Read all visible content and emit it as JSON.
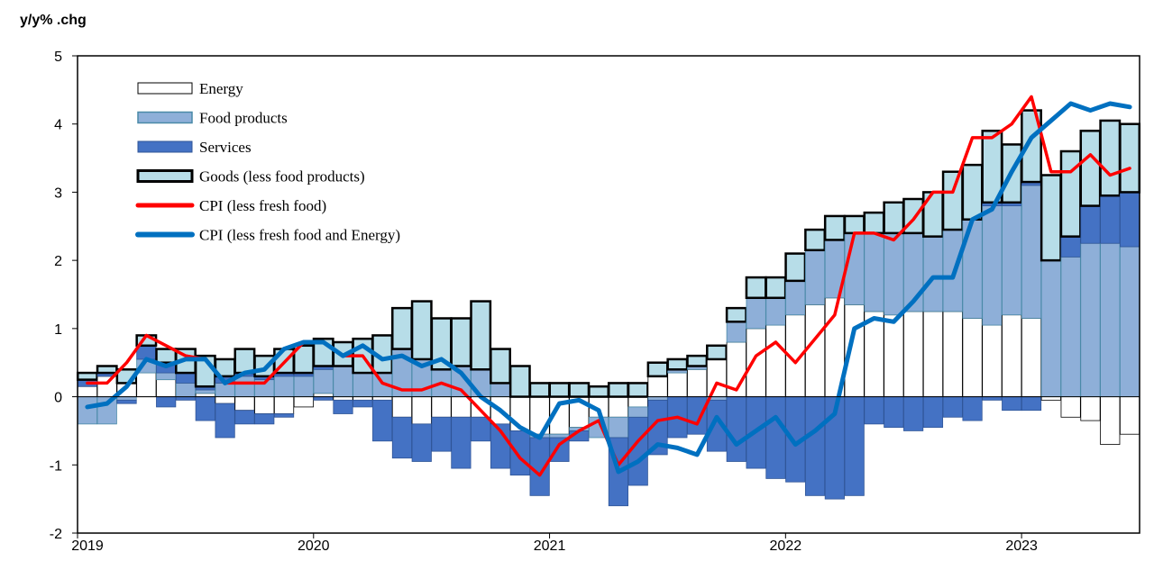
{
  "chart_data": {
    "type": "bar",
    "ylabel": "y/y% .chg",
    "ylim": [
      -2,
      5
    ],
    "yticks": [
      "5",
      "4",
      "3",
      "2",
      "1",
      "0",
      "-1",
      "-2"
    ],
    "x_labels": [
      "2019",
      "2020",
      "2021",
      "2022",
      "2023"
    ],
    "categories": [
      "2019-01",
      "2019-02",
      "2019-03",
      "2019-04",
      "2019-05",
      "2019-06",
      "2019-07",
      "2019-08",
      "2019-09",
      "2019-10",
      "2019-11",
      "2019-12",
      "2020-01",
      "2020-02",
      "2020-03",
      "2020-04",
      "2020-05",
      "2020-06",
      "2020-07",
      "2020-08",
      "2020-09",
      "2020-10",
      "2020-11",
      "2020-12",
      "2021-01",
      "2021-02",
      "2021-03",
      "2021-04",
      "2021-05",
      "2021-06",
      "2021-07",
      "2021-08",
      "2021-09",
      "2021-10",
      "2021-11",
      "2021-12",
      "2022-01",
      "2022-02",
      "2022-03",
      "2022-04",
      "2022-05",
      "2022-06",
      "2022-07",
      "2022-08",
      "2022-09",
      "2022-10",
      "2022-11",
      "2022-12",
      "2023-01",
      "2023-02",
      "2023-03",
      "2023-04",
      "2023-05",
      "2023-06"
    ],
    "legend_position": "top-left",
    "grid": false,
    "series": [
      {
        "name": "Energy",
        "kind": "bar",
        "color": "#ffffff",
        "values": [
          0.15,
          0.3,
          0.2,
          0.35,
          0.25,
          0.0,
          0.05,
          -0.1,
          -0.2,
          -0.25,
          -0.25,
          -0.15,
          0.05,
          -0.05,
          -0.05,
          -0.05,
          -0.3,
          -0.4,
          -0.3,
          -0.3,
          -0.3,
          -0.4,
          -0.5,
          -0.55,
          -0.55,
          -0.45,
          -0.3,
          -0.3,
          -0.15,
          0.3,
          0.35,
          0.4,
          0.55,
          0.8,
          1.0,
          1.05,
          1.2,
          1.35,
          1.45,
          1.35,
          1.25,
          1.2,
          1.25,
          1.25,
          1.25,
          1.15,
          1.05,
          1.2,
          1.15,
          -0.05,
          -0.3,
          -0.35,
          -0.7,
          -0.55
        ]
      },
      {
        "name": "Food products",
        "kind": "bar",
        "color": "#8eafd8",
        "values": [
          -0.4,
          -0.4,
          -0.05,
          0.2,
          0.1,
          0.2,
          0.05,
          0.2,
          0.3,
          0.25,
          0.3,
          0.3,
          0.35,
          0.45,
          0.35,
          0.35,
          0.7,
          0.55,
          0.4,
          0.45,
          0.4,
          0.2,
          0.0,
          -0.05,
          -0.05,
          -0.05,
          -0.3,
          -0.3,
          -0.15,
          -0.05,
          0.05,
          0.05,
          -0.05,
          0.3,
          0.45,
          0.4,
          0.5,
          0.8,
          0.85,
          1.05,
          1.15,
          1.2,
          1.15,
          1.1,
          1.2,
          1.45,
          1.75,
          1.6,
          1.95,
          2.0,
          2.05,
          2.25,
          2.25,
          2.2
        ]
      },
      {
        "name": "Services",
        "kind": "bar",
        "color": "#4472c4",
        "values": [
          0.1,
          0.05,
          0.0,
          0.2,
          0.15,
          0.15,
          0.05,
          0.1,
          0.05,
          0.05,
          0.05,
          0.05,
          0.05,
          0.0,
          0.0,
          0.0,
          0.0,
          0.0,
          0.0,
          0.0,
          0.0,
          0.0,
          0.0,
          0.0,
          0.0,
          0.0,
          0.0,
          0.0,
          0.0,
          0.0,
          0.0,
          0.0,
          0.0,
          0.0,
          0.0,
          0.0,
          0.0,
          0.0,
          0.0,
          0.0,
          0.0,
          0.0,
          0.0,
          0.0,
          0.0,
          0.0,
          0.05,
          0.05,
          0.05,
          0.0,
          0.3,
          0.55,
          0.7,
          0.8
        ]
      },
      {
        "name": "Services negative",
        "kind": "bar",
        "color": "#4472c4",
        "values": [
          0.0,
          0.0,
          -0.05,
          0.0,
          -0.15,
          -0.05,
          -0.35,
          -0.5,
          -0.2,
          -0.15,
          -0.05,
          0.0,
          -0.05,
          -0.2,
          -0.1,
          -0.6,
          -0.6,
          -0.55,
          -0.5,
          -0.75,
          -0.35,
          -0.65,
          -0.65,
          -0.85,
          -0.35,
          -0.15,
          0.0,
          -1.0,
          -1.0,
          -0.8,
          -0.6,
          -0.55,
          -0.75,
          -0.95,
          -1.05,
          -1.2,
          -1.25,
          -1.45,
          -1.5,
          -1.45,
          -0.4,
          -0.45,
          -0.5,
          -0.45,
          -0.3,
          -0.35,
          -0.05,
          -0.2,
          -0.2,
          0.0,
          0.0,
          0.0,
          0.0,
          0.0
        ]
      },
      {
        "name": "Goods (less food products)",
        "kind": "bar",
        "color": "#b7dde8",
        "values": [
          0.1,
          0.1,
          0.2,
          0.15,
          0.2,
          0.35,
          0.45,
          0.25,
          0.35,
          0.3,
          0.35,
          0.4,
          0.4,
          0.35,
          0.5,
          0.55,
          0.6,
          0.85,
          0.75,
          0.7,
          1.0,
          0.5,
          0.45,
          0.2,
          0.2,
          0.2,
          0.15,
          0.2,
          0.2,
          0.2,
          0.15,
          0.15,
          0.2,
          0.2,
          0.3,
          0.3,
          0.4,
          0.3,
          0.35,
          0.25,
          0.3,
          0.45,
          0.5,
          0.65,
          0.85,
          0.8,
          1.05,
          0.85,
          1.05,
          1.25,
          1.25,
          1.1,
          1.1,
          1.0
        ]
      },
      {
        "name": "CPI (less fresh food)",
        "kind": "line",
        "color": "#ff0000",
        "values": [
          0.2,
          0.2,
          0.5,
          0.9,
          0.75,
          0.6,
          0.55,
          0.2,
          0.2,
          0.2,
          0.5,
          0.8,
          0.8,
          0.6,
          0.6,
          0.2,
          0.1,
          0.1,
          0.2,
          0.1,
          -0.2,
          -0.5,
          -0.9,
          -1.15,
          -0.7,
          -0.5,
          -0.35,
          -1.0,
          -0.65,
          -0.35,
          -0.3,
          -0.4,
          0.2,
          0.1,
          0.6,
          0.8,
          0.5,
          0.85,
          1.2,
          2.4,
          2.4,
          2.3,
          2.6,
          3.0,
          3.0,
          3.8,
          3.8,
          4.0,
          4.4,
          3.3,
          3.3,
          3.55,
          3.25,
          3.35
        ]
      },
      {
        "name": "CPI (less fresh food and Energy)",
        "kind": "line",
        "color": "#0070c0",
        "values": [
          -0.15,
          -0.1,
          0.15,
          0.55,
          0.45,
          0.55,
          0.55,
          0.2,
          0.35,
          0.4,
          0.7,
          0.8,
          0.8,
          0.6,
          0.75,
          0.55,
          0.6,
          0.45,
          0.55,
          0.35,
          0.0,
          -0.2,
          -0.45,
          -0.6,
          -0.1,
          -0.05,
          -0.2,
          -1.1,
          -0.95,
          -0.7,
          -0.75,
          -0.85,
          -0.3,
          -0.7,
          -0.5,
          -0.3,
          -0.7,
          -0.5,
          -0.25,
          1.0,
          1.15,
          1.1,
          1.4,
          1.75,
          1.75,
          2.6,
          2.75,
          3.3,
          3.8,
          4.05,
          4.3,
          4.2,
          4.3,
          4.25
        ]
      }
    ],
    "legend": [
      {
        "label": "Energy",
        "swatch": "box",
        "fill": "#ffffff",
        "stroke": "#000000",
        "width": 1
      },
      {
        "label": "Food products",
        "swatch": "box",
        "fill": "#8eafd8",
        "stroke": "#4a8aa8",
        "width": 1.5
      },
      {
        "label": "Services",
        "swatch": "box",
        "fill": "#4472c4",
        "stroke": "#2f5597",
        "width": 1
      },
      {
        "label": "Goods (less food products)",
        "swatch": "box",
        "fill": "#b7dde8",
        "stroke": "#000000",
        "width": 3
      },
      {
        "label": "CPI (less fresh food)",
        "swatch": "line",
        "stroke": "#ff0000",
        "width": 5
      },
      {
        "label": "CPI (less fresh food and Energy)",
        "swatch": "line",
        "stroke": "#0070c0",
        "width": 6
      }
    ]
  }
}
